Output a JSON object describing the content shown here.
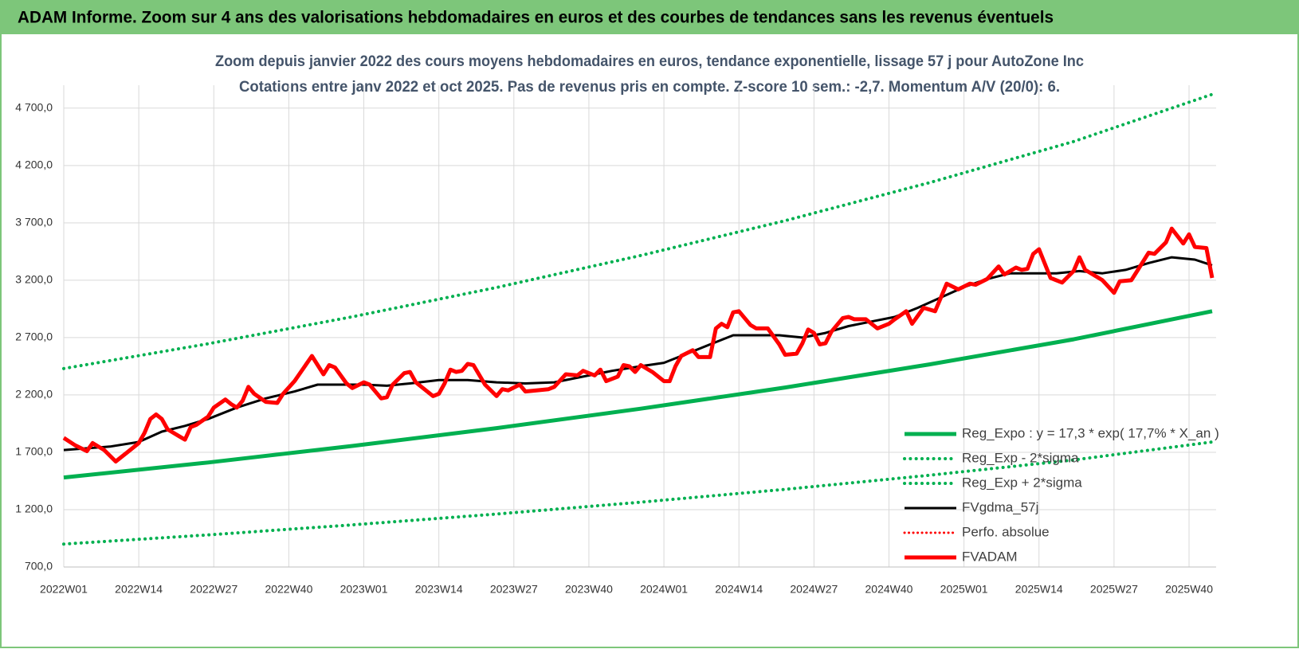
{
  "header": {
    "title": "ADAM Informe. Zoom sur 4 ans des valorisations hebdomadaires en euros et des courbes de tendances sans les revenus éventuels"
  },
  "chart_data": {
    "type": "line",
    "title": "Zoom depuis janvier 2022 des cours moyens hebdomadaires en euros, tendance exponentielle, lissage 57 j pour AutoZone Inc",
    "subtitle": "Cotations entre janv 2022 et oct 2025. Pas de revenus pris en compte. Z-score 10 sem.: -2,7.  Momentum A/V (20/0): 6.",
    "xlim": [
      0,
      199
    ],
    "xticks": [
      {
        "value": 0,
        "label": "2022W01"
      },
      {
        "value": 13,
        "label": "2022W14"
      },
      {
        "value": 26,
        "label": "2022W27"
      },
      {
        "value": 39,
        "label": "2022W40"
      },
      {
        "value": 52,
        "label": "2023W01"
      },
      {
        "value": 65,
        "label": "2023W14"
      },
      {
        "value": 78,
        "label": "2023W27"
      },
      {
        "value": 91,
        "label": "2023W40"
      },
      {
        "value": 104,
        "label": "2024W01"
      },
      {
        "value": 117,
        "label": "2024W14"
      },
      {
        "value": 130,
        "label": "2024W27"
      },
      {
        "value": 143,
        "label": "2024W40"
      },
      {
        "value": 156,
        "label": "2025W01"
      },
      {
        "value": 169,
        "label": "2025W14"
      },
      {
        "value": 182,
        "label": "2025W27"
      },
      {
        "value": 195,
        "label": "2025W40"
      }
    ],
    "ylim": [
      700,
      4900
    ],
    "yticks": [
      {
        "value": 700,
        "label": "700,0"
      },
      {
        "value": 1200,
        "label": "1 200,0"
      },
      {
        "value": 1700,
        "label": "1 700,0"
      },
      {
        "value": 2200,
        "label": "2 200,0"
      },
      {
        "value": 2700,
        "label": "2 700,0"
      },
      {
        "value": 3200,
        "label": "3 200,0"
      },
      {
        "value": 3700,
        "label": "3 700,0"
      },
      {
        "value": 4200,
        "label": "4 200,0"
      },
      {
        "value": 4700,
        "label": "4 700,0"
      }
    ],
    "grid": true,
    "legend": "lower right",
    "series": [
      {
        "name": "Reg_Expo : y = 17,3 * exp( 17,7% *  X_an )",
        "color": "#00b050",
        "style": "solid",
        "width": 5,
        "x": [
          0,
          25,
          50,
          75,
          100,
          125,
          150,
          175,
          199
        ],
        "values": [
          1480,
          1611,
          1755,
          1911,
          2080,
          2265,
          2466,
          2685,
          2930
        ]
      },
      {
        "name": "Reg_Exp - 2*sigma",
        "color": "#00b050",
        "style": "dotted",
        "width": 4,
        "x": [
          0,
          25,
          50,
          75,
          100,
          125,
          150,
          175,
          199
        ],
        "values": [
          900,
          980,
          1067,
          1162,
          1265,
          1377,
          1500,
          1633,
          1790
        ]
      },
      {
        "name": "Reg_Exp + 2*sigma",
        "color": "#00b050",
        "style": "dotted",
        "width": 4,
        "x": [
          0,
          25,
          50,
          75,
          100,
          125,
          150,
          175,
          199
        ],
        "values": [
          2430,
          2646,
          2881,
          3137,
          3416,
          3719,
          4050,
          4409,
          4820
        ]
      },
      {
        "name": "FVgdma_57j",
        "color": "#000000",
        "style": "solid",
        "width": 3,
        "x": [
          0,
          8,
          13,
          17,
          21,
          25,
          30,
          35,
          40,
          44,
          48,
          52,
          56,
          60,
          65,
          70,
          75,
          80,
          85,
          90,
          95,
          100,
          104,
          108,
          112,
          116,
          120,
          124,
          128,
          132,
          136,
          140,
          144,
          148,
          152,
          156,
          160,
          164,
          168,
          172,
          176,
          180,
          184,
          188,
          192,
          196,
          199
        ],
        "values": [
          1720,
          1750,
          1790,
          1880,
          1930,
          1990,
          2090,
          2170,
          2230,
          2290,
          2290,
          2290,
          2280,
          2300,
          2330,
          2330,
          2310,
          2300,
          2310,
          2360,
          2410,
          2450,
          2480,
          2560,
          2640,
          2720,
          2720,
          2720,
          2700,
          2740,
          2800,
          2840,
          2880,
          2960,
          3050,
          3140,
          3210,
          3260,
          3260,
          3260,
          3280,
          3260,
          3290,
          3350,
          3400,
          3380,
          3330
        ]
      },
      {
        "name": "Perfo. absolue",
        "color": "#ff0000",
        "style": "dotted",
        "width": 3,
        "x": [],
        "values": []
      },
      {
        "name": "FVADAM",
        "color": "#ff0000",
        "style": "solid",
        "width": 5,
        "x": [
          0,
          2,
          4,
          5,
          7,
          9,
          11,
          13,
          14,
          15,
          16,
          17,
          18,
          20,
          21,
          22,
          23,
          25,
          26,
          28,
          29,
          30,
          31,
          32,
          33,
          35,
          37,
          38,
          40,
          43,
          45,
          46,
          47,
          49,
          50,
          52,
          53,
          55,
          56,
          57,
          59,
          60,
          61,
          64,
          65,
          66,
          67,
          68,
          69,
          70,
          71,
          73,
          75,
          76,
          77,
          79,
          80,
          84,
          85,
          87,
          89,
          90,
          92,
          93,
          94,
          96,
          97,
          98,
          99,
          100,
          102,
          104,
          105,
          106,
          107,
          109,
          110,
          112,
          113,
          114,
          115,
          116,
          117,
          119,
          120,
          122,
          124,
          125,
          127,
          128,
          129,
          130,
          131,
          132,
          133,
          135,
          136,
          137,
          139,
          141,
          143,
          144,
          146,
          147,
          149,
          151,
          152,
          153,
          155,
          157,
          158,
          160,
          162,
          163,
          165,
          166,
          167,
          168,
          169,
          171,
          173,
          175,
          176,
          177,
          180,
          182,
          183,
          185,
          186,
          188,
          189,
          191,
          192,
          194,
          195,
          196,
          198,
          199
        ],
        "values": [
          1825,
          1760,
          1710,
          1780,
          1720,
          1620,
          1700,
          1780,
          1870,
          1990,
          2030,
          1990,
          1900,
          1840,
          1810,
          1920,
          1940,
          2010,
          2090,
          2160,
          2120,
          2090,
          2150,
          2270,
          2210,
          2140,
          2130,
          2210,
          2320,
          2540,
          2380,
          2460,
          2440,
          2300,
          2260,
          2310,
          2290,
          2170,
          2180,
          2290,
          2390,
          2400,
          2310,
          2190,
          2210,
          2300,
          2420,
          2400,
          2410,
          2470,
          2460,
          2290,
          2190,
          2250,
          2240,
          2290,
          2230,
          2250,
          2270,
          2380,
          2370,
          2410,
          2370,
          2420,
          2320,
          2360,
          2460,
          2450,
          2400,
          2460,
          2400,
          2320,
          2320,
          2450,
          2540,
          2590,
          2530,
          2530,
          2780,
          2820,
          2790,
          2920,
          2930,
          2810,
          2780,
          2780,
          2640,
          2550,
          2560,
          2650,
          2770,
          2740,
          2640,
          2650,
          2750,
          2870,
          2880,
          2860,
          2860,
          2780,
          2820,
          2860,
          2930,
          2820,
          2960,
          2930,
          3050,
          3170,
          3120,
          3170,
          3160,
          3210,
          3320,
          3250,
          3310,
          3290,
          3300,
          3430,
          3470,
          3220,
          3180,
          3280,
          3400,
          3290,
          3200,
          3090,
          3190,
          3200,
          3280,
          3440,
          3430,
          3530,
          3650,
          3520,
          3600,
          3490,
          3480,
          3220
        ]
      }
    ]
  }
}
